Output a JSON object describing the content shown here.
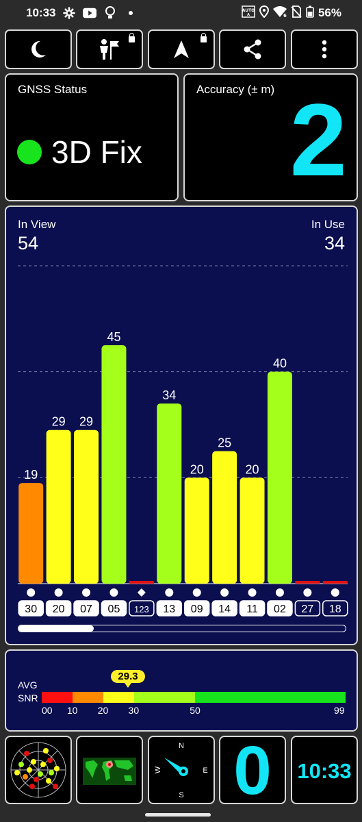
{
  "status_bar": {
    "time": "10:33",
    "battery": "56%",
    "icons": [
      "gear-icon",
      "youtube-icon",
      "bulb-icon",
      "dot-icon",
      "auto-brightness-icon",
      "location-icon",
      "wifi-icon",
      "no-sim-icon",
      "battery-icon"
    ]
  },
  "toolbar": {
    "icons": [
      "moon-icon",
      "guide-flag-icon",
      "navigation-arrow-icon",
      "share-icon",
      "more-vert-icon"
    ],
    "locked": [
      false,
      true,
      true,
      false,
      false
    ]
  },
  "gnss": {
    "label": "GNSS Status",
    "fix": "3D Fix",
    "fix_color": "#17e41c"
  },
  "accuracy": {
    "label": "Accuracy (± m)",
    "value": "2",
    "color": "#12e6f6"
  },
  "satellites": {
    "in_view_label": "In View",
    "in_view": "54",
    "in_use_label": "In Use",
    "in_use": "34",
    "scroll_fraction": 0.23
  },
  "chart_data": {
    "type": "bar",
    "categories": [
      "30",
      "20",
      "07",
      "05",
      "123",
      "13",
      "09",
      "14",
      "11",
      "02",
      "27",
      "18"
    ],
    "values": [
      19,
      29,
      29,
      45,
      0,
      34,
      20,
      25,
      20,
      40,
      0,
      0
    ],
    "value_labels": [
      "19",
      "29",
      "29",
      "45",
      "",
      "34",
      "20",
      "25",
      "20",
      "40",
      "",
      ""
    ],
    "colors": [
      "#ff8a00",
      "#ffff1a",
      "#ffff1a",
      "#a4ff1a",
      "#e01010",
      "#a4ff1a",
      "#ffff1a",
      "#ffff1a",
      "#ffff1a",
      "#a4ff1a",
      "#e01010",
      "#e01010"
    ],
    "markers": [
      "dot",
      "dot",
      "dot",
      "dot",
      "diamond",
      "dot",
      "dot",
      "dot",
      "dot",
      "dot",
      "dot",
      "dot"
    ],
    "in_use": [
      true,
      true,
      true,
      true,
      false,
      true,
      true,
      true,
      true,
      true,
      false,
      false
    ],
    "ylim": [
      0,
      60
    ],
    "gridlines": [
      20,
      40,
      60
    ],
    "xlabel": "",
    "ylabel": ""
  },
  "snr": {
    "avg_label": "AVG",
    "snr_label": "SNR",
    "avg_value": "29.3",
    "avg": 29.3,
    "scale_max": 99,
    "segments": [
      {
        "from": 0,
        "to": 10,
        "color": "#ff1010"
      },
      {
        "from": 10,
        "to": 20,
        "color": "#ff8a00"
      },
      {
        "from": 20,
        "to": 30,
        "color": "#ffff1a"
      },
      {
        "from": 30,
        "to": 50,
        "color": "#a4ff1a"
      },
      {
        "from": 50,
        "to": 99,
        "color": "#17e41c"
      }
    ],
    "ticks": [
      "00",
      "10",
      "20",
      "30",
      "50",
      "99"
    ]
  },
  "bottom": {
    "icons": [
      "sky-plot-icon",
      "world-map-icon",
      "compass-icon",
      "speed-display",
      "clock-display"
    ],
    "compass_n": "N",
    "compass_e": "E",
    "compass_s": "S",
    "compass_w": "W",
    "speed": "0",
    "clock": "10:33",
    "display_color": "#12e6f6"
  }
}
